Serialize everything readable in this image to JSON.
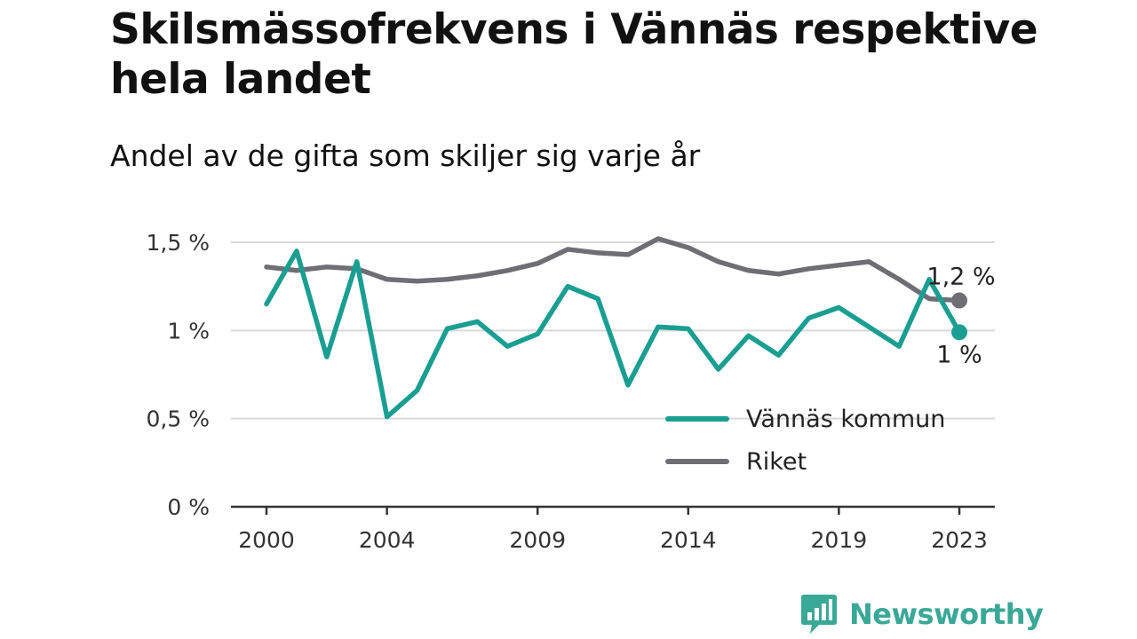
{
  "title": "Skilsmässofrekvens i Vännäs respektive hela landet",
  "subtitle": "Andel av de gifta som skiljer sig varje år",
  "brand": {
    "name": "Newsworthy",
    "logo_icon": "bar-chart-speech-bubble-icon"
  },
  "colors": {
    "vannas": "#1a9e92",
    "riket": "#6f6e74",
    "grid": "#d9d9d9",
    "axis": "#333333",
    "brand": "#3aa897"
  },
  "chart_data": {
    "type": "line",
    "title": "Skilsmässofrekvens i Vännäs respektive hela landet",
    "subtitle": "Andel av de gifta som skiljer sig varje år",
    "x": [
      2000,
      2001,
      2002,
      2003,
      2004,
      2005,
      2006,
      2007,
      2008,
      2009,
      2010,
      2011,
      2012,
      2013,
      2014,
      2015,
      2016,
      2017,
      2018,
      2019,
      2020,
      2021,
      2022,
      2023
    ],
    "xticks": [
      2000,
      2004,
      2009,
      2014,
      2019,
      2023
    ],
    "xtick_labels": [
      "2000",
      "2004",
      "2009",
      "2014",
      "2019",
      "2023"
    ],
    "yticks": [
      0,
      0.5,
      1,
      1.5
    ],
    "ytick_labels": [
      "0 %",
      "0,5 %",
      "1 %",
      "1,5 %"
    ],
    "ylim": [
      0,
      1.5
    ],
    "xlim": [
      2000,
      2023
    ],
    "grid": "horizontal",
    "legend_position": "bottom-right",
    "series": [
      {
        "name": "Vännäs kommun",
        "color": "#1a9e92",
        "values": [
          1.15,
          1.45,
          0.85,
          1.39,
          0.51,
          0.66,
          1.01,
          1.05,
          0.91,
          0.98,
          1.25,
          1.18,
          0.69,
          1.02,
          1.01,
          0.78,
          0.97,
          0.86,
          1.07,
          1.13,
          1.02,
          0.91,
          1.29,
          0.99
        ],
        "end_label": "1 %"
      },
      {
        "name": "Riket",
        "color": "#6f6e74",
        "values": [
          1.36,
          1.34,
          1.36,
          1.35,
          1.29,
          1.28,
          1.29,
          1.31,
          1.34,
          1.38,
          1.46,
          1.44,
          1.43,
          1.52,
          1.47,
          1.39,
          1.34,
          1.32,
          1.35,
          1.37,
          1.39,
          1.29,
          1.18,
          1.17
        ],
        "end_label": "1,2 %"
      }
    ]
  }
}
